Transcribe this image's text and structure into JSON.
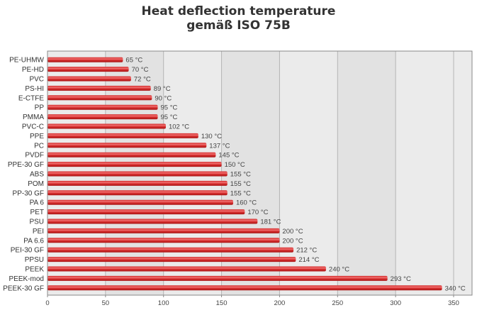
{
  "title_line1": "Heat deflection temperature",
  "title_line2": "gemäß ISO 75B",
  "chart_data": {
    "type": "bar",
    "orientation": "horizontal",
    "title": "Heat deflection temperature gemäß ISO 75B",
    "categories": [
      "PE-UHMW",
      "PE-HD",
      "PVC",
      "PS-HI",
      "E-CTFE",
      "PP",
      "PMMA",
      "PVC-C",
      "PPE",
      "PC",
      "PVDF",
      "PPE-30 GF",
      "ABS",
      "POM",
      "PP-30 GF",
      "PA 6",
      "PET",
      "PSU",
      "PEI",
      "PA 6.6",
      "PEI-30 GF",
      "PPSU",
      "PEEK",
      "PEEK-mod",
      "PEEK-30 GF"
    ],
    "values": [
      65,
      70,
      72,
      89,
      90,
      95,
      95,
      102,
      130,
      137,
      145,
      150,
      155,
      155,
      155,
      160,
      170,
      181,
      200,
      200,
      212,
      214,
      240,
      293,
      340
    ],
    "value_labels": [
      "65 °C",
      "70 °C",
      "72 °C",
      "89 °C",
      "90 °C",
      "95 °C",
      "95 °C",
      "102 °C",
      "130 °C",
      "137 °C",
      "145 °C",
      "150 °C",
      "155 °C",
      "155 °C",
      "155 °C",
      "160 °C",
      "170 °C",
      "181 °C",
      "200 °C",
      "200 °C",
      "212 °C",
      "214 °C",
      "240 °C",
      "293 °C",
      "340 °C"
    ],
    "xticks": [
      "0",
      "50",
      "100",
      "150",
      "200",
      "250",
      "300",
      "350"
    ],
    "xlim": [
      0,
      350
    ],
    "grid": true,
    "colors": {
      "bar": "#d42a2a",
      "bar_highlight": "#f07070",
      "panel": "#ebebeb",
      "grid": "#ffffff",
      "alt_band": "#e2e2e2"
    }
  }
}
